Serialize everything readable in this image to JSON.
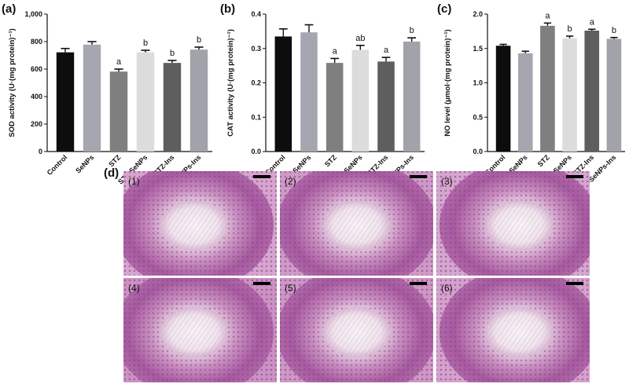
{
  "chart_data": [
    {
      "type": "bar",
      "panel": "(a)",
      "ylabel": "SOD activity (U·(mg protein)⁻¹)",
      "ylim": [
        0,
        1000
      ],
      "yticks": [
        "0",
        "200",
        "400",
        "600",
        "800",
        "1,000"
      ],
      "categories": [
        "Control",
        "SeNPs",
        "STZ",
        "STZ-SeNPs",
        "STZ-Ins",
        "STZ-SeNPs-Ins"
      ],
      "values": [
        722,
        778,
        582,
        722,
        645,
        742
      ],
      "errors": [
        28,
        22,
        18,
        15,
        18,
        18
      ],
      "labels": [
        "",
        "",
        "a",
        "b",
        "b",
        "b"
      ],
      "colors": [
        "#0d0d0d",
        "#a6a6b0",
        "#7f7f7f",
        "#dcdcdc",
        "#5e5e5e",
        "#a2a2aa"
      ]
    },
    {
      "type": "bar",
      "panel": "(b)",
      "ylabel": "CAT activity (U·(mg protein)⁻¹)",
      "ylim": [
        0,
        0.4
      ],
      "yticks": [
        "0.0",
        "0.1",
        "0.2",
        "0.3",
        "0.4"
      ],
      "categories": [
        "Control",
        "SeNPs",
        "STZ",
        "STZ-SeNPs",
        "STZ-Ins",
        "STZ-SeNPs-Ins"
      ],
      "values": [
        0.335,
        0.347,
        0.258,
        0.296,
        0.262,
        0.32
      ],
      "errors": [
        0.022,
        0.022,
        0.013,
        0.013,
        0.012,
        0.011
      ],
      "labels": [
        "",
        "",
        "a",
        "ab",
        "a",
        "b"
      ],
      "colors": [
        "#0d0d0d",
        "#a6a6b0",
        "#7f7f7f",
        "#dcdcdc",
        "#5e5e5e",
        "#a2a2aa"
      ]
    },
    {
      "type": "bar",
      "panel": "(c)",
      "ylabel": "NO level (μmol·(mg protein)⁻¹)",
      "ylim": [
        0,
        2.0
      ],
      "yticks": [
        "0.0",
        "0.5",
        "1.0",
        "1.5",
        "2.0"
      ],
      "categories": [
        "Control",
        "SeNPs",
        "STZ",
        "STZ-SeNPs",
        "STZ-Ins",
        "STZ-SeNPs-Ins"
      ],
      "values": [
        1.54,
        1.43,
        1.83,
        1.65,
        1.76,
        1.64
      ],
      "errors": [
        0.02,
        0.03,
        0.04,
        0.03,
        0.02,
        0.02
      ],
      "labels": [
        "",
        "",
        "a",
        "b",
        "a",
        "b"
      ],
      "colors": [
        "#0d0d0d",
        "#a6a6b0",
        "#7f7f7f",
        "#dcdcdc",
        "#5e5e5e",
        "#a2a2aa"
      ]
    }
  ],
  "micrographs": {
    "panel": "(d)",
    "items": [
      {
        "label": "(1)"
      },
      {
        "label": "(2)"
      },
      {
        "label": "(3)"
      },
      {
        "label": "(4)"
      },
      {
        "label": "(5)"
      },
      {
        "label": "(6)"
      }
    ]
  }
}
